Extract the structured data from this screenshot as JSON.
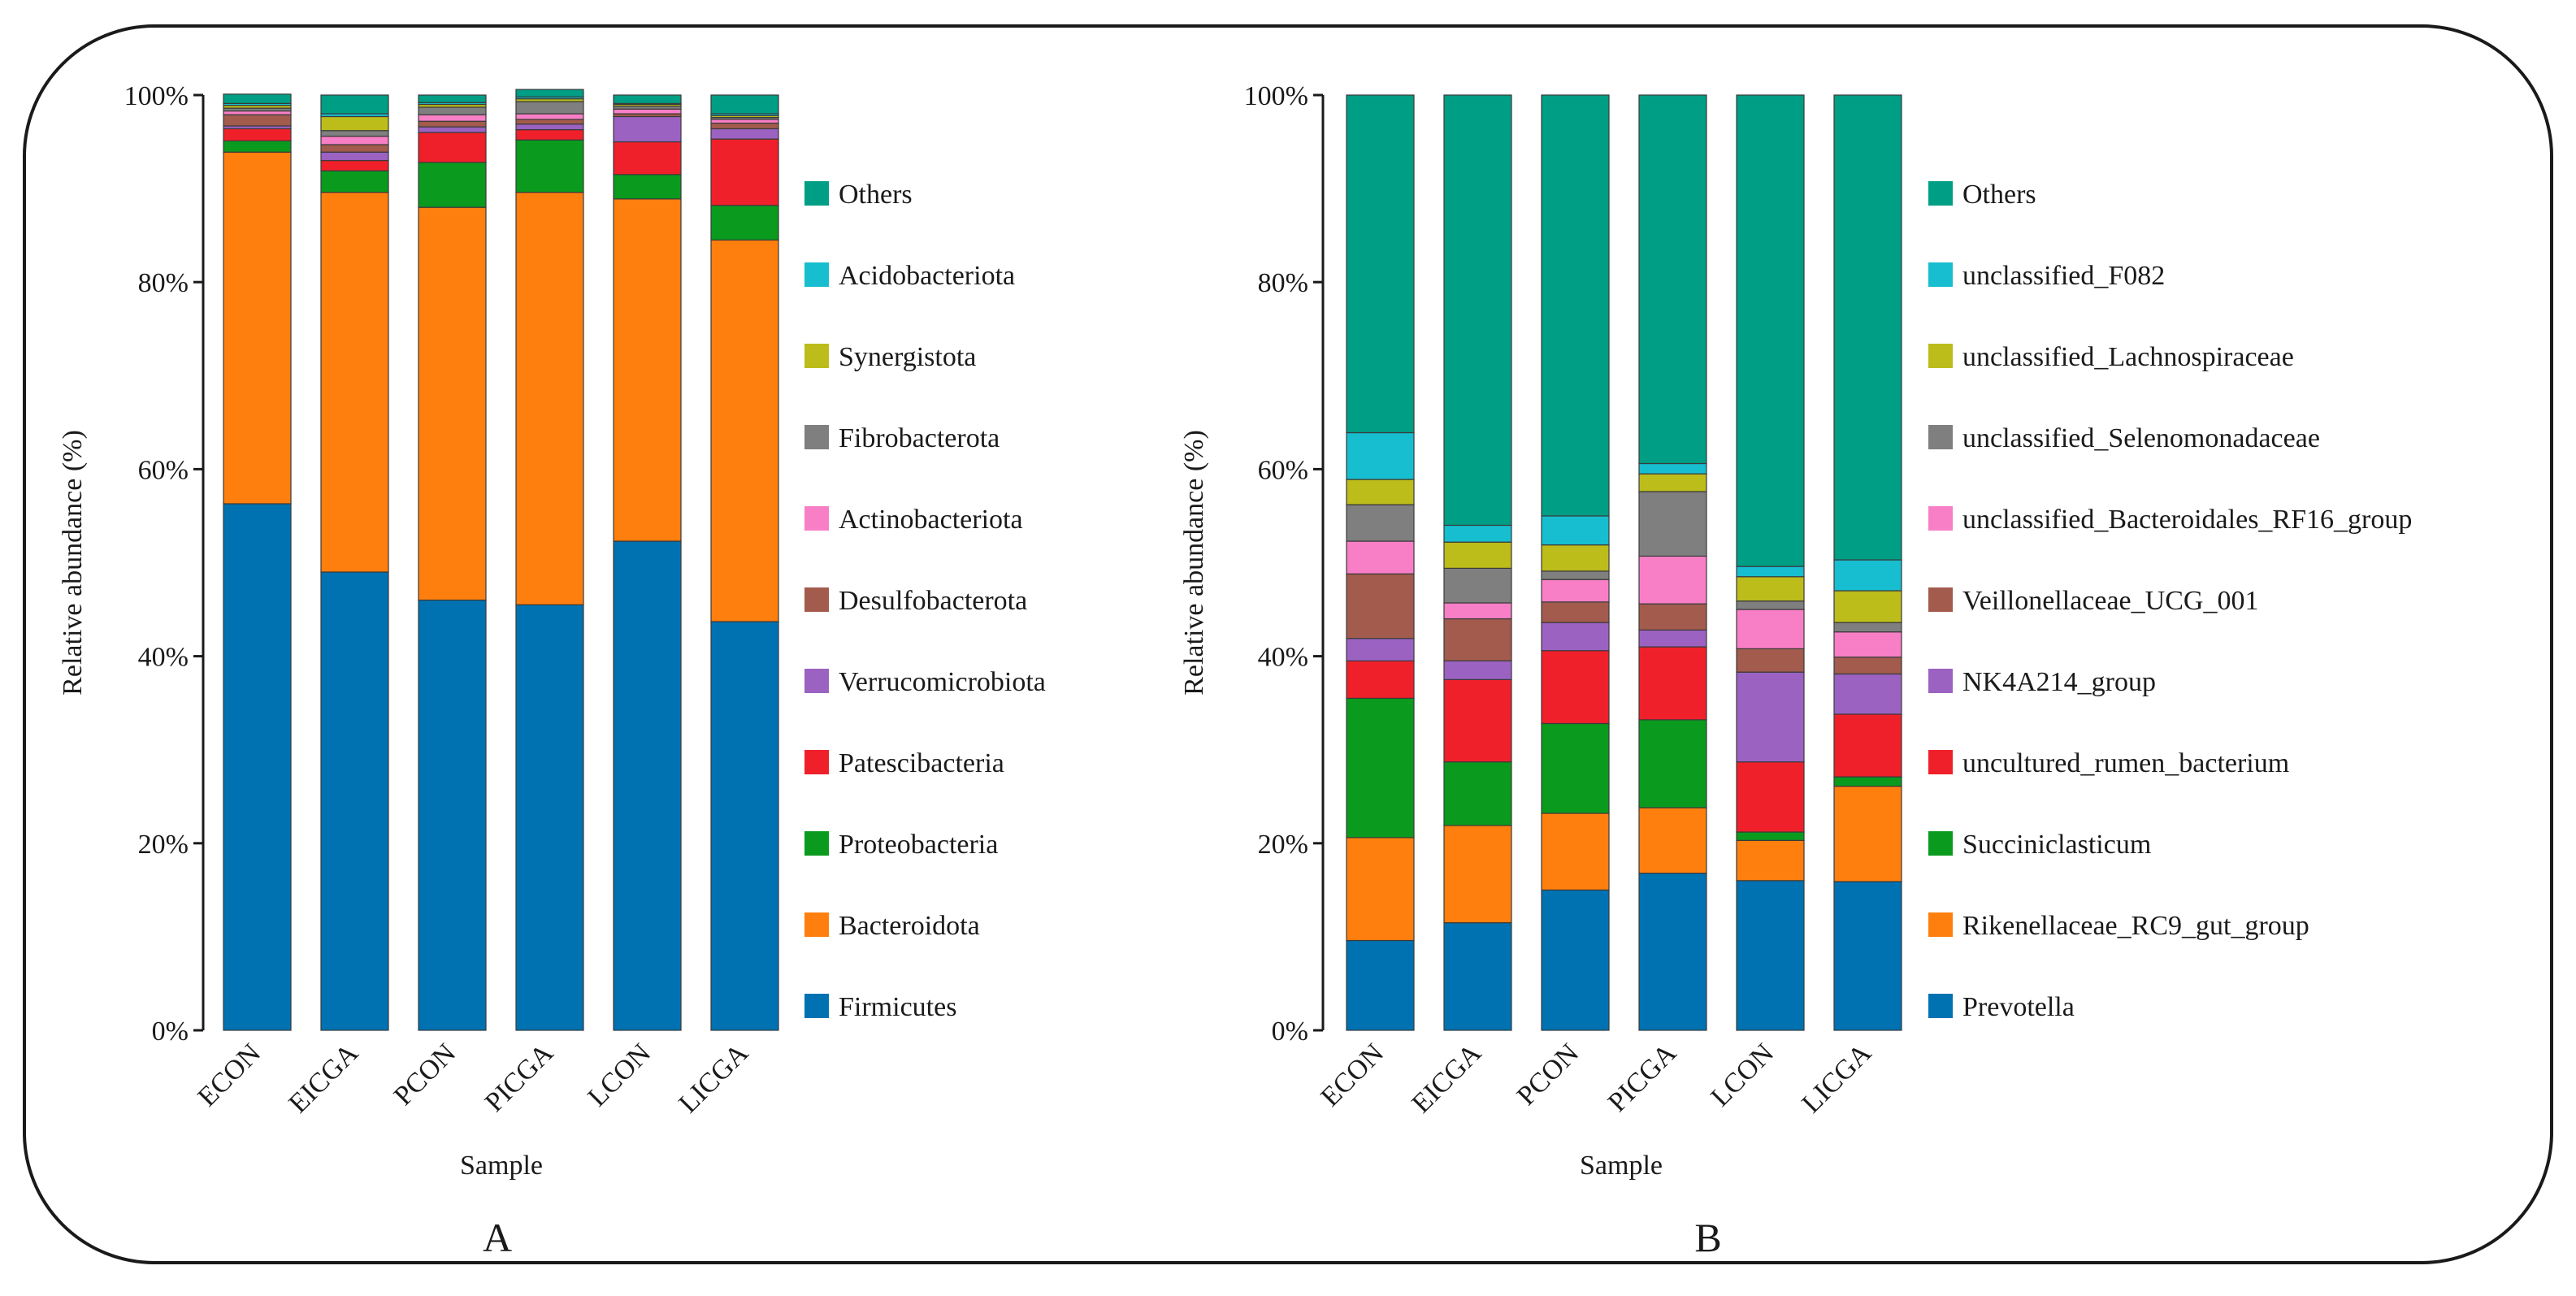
{
  "chart_data": [
    {
      "type": "bar",
      "stacked": true,
      "panel_label": "A",
      "xlabel": "Sample",
      "ylabel": "Relative abundance (%)",
      "ylim": [
        0,
        100
      ],
      "yticks": [
        "0%",
        "20%",
        "40%",
        "60%",
        "80%",
        "100%"
      ],
      "categories": [
        "ECON",
        "EICGA",
        "PCON",
        "PICGA",
        "LCON",
        "LICGA"
      ],
      "series": [
        {
          "name": "Firmicutes",
          "color": "#0072b2",
          "values": [
            56.3,
            49.0,
            46.0,
            45.5,
            52.3,
            43.7
          ]
        },
        {
          "name": "Bacteroidota",
          "color": "#ff7f0e",
          "values": [
            37.6,
            40.6,
            42.0,
            44.1,
            36.6,
            40.8
          ]
        },
        {
          "name": "Proteobacteria",
          "color": "#0a9b1e",
          "values": [
            1.2,
            2.3,
            4.8,
            5.6,
            2.6,
            3.7
          ]
        },
        {
          "name": "Patescibacteria",
          "color": "#f0202a",
          "values": [
            1.3,
            1.1,
            3.2,
            1.1,
            3.5,
            7.1
          ]
        },
        {
          "name": "Verrucomicrobiota",
          "color": "#9c62c2",
          "values": [
            0.3,
            0.9,
            0.6,
            0.6,
            2.7,
            1.1
          ]
        },
        {
          "name": "Desulfobacterota",
          "color": "#a25b4d",
          "values": [
            1.2,
            0.8,
            0.6,
            0.5,
            0.3,
            0.6
          ]
        },
        {
          "name": "Actinobacteriota",
          "color": "#f87fc6",
          "values": [
            0.4,
            0.9,
            0.7,
            0.6,
            0.5,
            0.4
          ]
        },
        {
          "name": "Fibrobacterota",
          "color": "#7f7f7f",
          "values": [
            0.3,
            0.6,
            0.8,
            1.3,
            0.3,
            0.2
          ]
        },
        {
          "name": "Synergistota",
          "color": "#bcbc1b",
          "values": [
            0.3,
            1.5,
            0.3,
            0.3,
            0.2,
            0.2
          ]
        },
        {
          "name": "Acidobacteriota",
          "color": "#16becf",
          "values": [
            0.2,
            0.3,
            0.2,
            0.2,
            0.1,
            0.2
          ]
        },
        {
          "name": "Others",
          "color": "#009e84",
          "values": [
            1.0,
            2.0,
            0.8,
            0.8,
            0.9,
            2.0
          ]
        }
      ]
    },
    {
      "type": "bar",
      "stacked": true,
      "panel_label": "B",
      "xlabel": "Sample",
      "ylabel": "Relative abundance (%)",
      "ylim": [
        0,
        100
      ],
      "yticks": [
        "0%",
        "20%",
        "40%",
        "60%",
        "80%",
        "100%"
      ],
      "categories": [
        "ECON",
        "EICGA",
        "PCON",
        "PICGA",
        "LCON",
        "LICGA"
      ],
      "series": [
        {
          "name": "Prevotella",
          "color": "#0072b2",
          "values": [
            9.6,
            11.5,
            15.0,
            16.8,
            16.0,
            15.9
          ]
        },
        {
          "name": "Rikenellaceae_RC9_gut_group",
          "color": "#ff7f0e",
          "values": [
            11.0,
            10.4,
            8.2,
            7.0,
            4.3,
            10.2
          ]
        },
        {
          "name": "Succiniclasticum",
          "color": "#0a9b1e",
          "values": [
            14.9,
            6.8,
            9.6,
            9.4,
            0.9,
            1.0
          ]
        },
        {
          "name": "uncultured_rumen_bacterium",
          "color": "#f0202a",
          "values": [
            4.0,
            8.8,
            7.8,
            7.8,
            7.5,
            6.7
          ]
        },
        {
          "name": "NK4A214_group",
          "color": "#9c62c2",
          "values": [
            2.4,
            2.0,
            3.0,
            1.8,
            9.6,
            4.3
          ]
        },
        {
          "name": "Veillonellaceae_UCG_001",
          "color": "#a25b4d",
          "values": [
            6.9,
            4.5,
            2.2,
            2.8,
            2.5,
            1.8
          ]
        },
        {
          "name": "unclassified_Bacteroidales_RF16_group",
          "color": "#f87fc6",
          "values": [
            3.5,
            1.7,
            2.4,
            5.1,
            4.2,
            2.7
          ]
        },
        {
          "name": "unclassified_Selenomonadaceae",
          "color": "#7f7f7f",
          "values": [
            3.9,
            3.7,
            0.9,
            6.9,
            0.9,
            1.0
          ]
        },
        {
          "name": "unclassified_Lachnospiraceae",
          "color": "#bcbc1b",
          "values": [
            2.7,
            2.8,
            2.8,
            1.9,
            2.6,
            3.4
          ]
        },
        {
          "name": "unclassified_F082",
          "color": "#16becf",
          "values": [
            5.0,
            1.8,
            3.1,
            1.1,
            1.1,
            3.3
          ]
        },
        {
          "name": "Others",
          "color": "#009e84",
          "values": [
            36.1,
            46.0,
            45.0,
            39.4,
            50.4,
            49.7
          ]
        }
      ]
    }
  ]
}
